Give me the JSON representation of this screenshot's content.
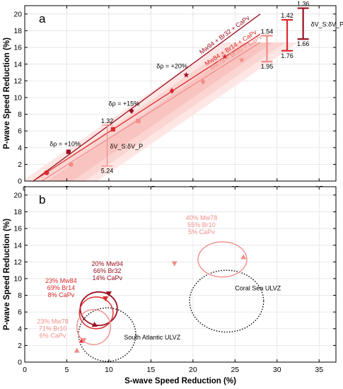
{
  "chart_data": [
    {
      "panel": "a",
      "type": "line",
      "xlabel": "",
      "ylabel": "P-wave Speed Reduction (%)",
      "xlim": [
        0,
        37
      ],
      "ylim": [
        0,
        21
      ],
      "x_ticks": [
        0,
        5,
        10,
        15,
        20,
        25,
        30,
        35
      ],
      "y_ticks": [
        0,
        2,
        4,
        6,
        8,
        10,
        12,
        14,
        16,
        18,
        20
      ],
      "grid": true,
      "series": [
        {
          "name": "Mw94 + Br32 + CaPv",
          "color": "#9b1020",
          "line": [
            [
              1.0,
              0.0
            ],
            [
              28.0,
              20.0
            ]
          ],
          "points": [
            {
              "x": 5.2,
              "y": 3.5,
              "marker": "square"
            },
            {
              "x": 12.7,
              "y": 8.4,
              "marker": "diamond"
            },
            {
              "x": 19.2,
              "y": 12.7,
              "marker": "star"
            }
          ]
        },
        {
          "name": "Mw84 + Br14 + CaPv",
          "color": "#dc2b2b",
          "line": [
            [
              1.0,
              0.0
            ],
            [
              28.0,
              17.6
            ]
          ],
          "points": [
            {
              "x": 2.6,
              "y": 1.0,
              "marker": "circle"
            },
            {
              "x": 10.5,
              "y": 6.2,
              "marker": "square"
            },
            {
              "x": 17.5,
              "y": 10.8,
              "marker": "diamond"
            },
            {
              "x": 23.8,
              "y": 14.9,
              "marker": "star"
            }
          ]
        },
        {
          "name": "Mw78 + Br10 + CaPv",
          "color": "#f08e8a",
          "line": [
            [
              2.0,
              0.0
            ],
            [
              28.0,
              16.6
            ]
          ],
          "points": [
            {
              "x": 5.5,
              "y": 2.0,
              "marker": "circle"
            },
            {
              "x": 13.5,
              "y": 7.2,
              "marker": "square"
            },
            {
              "x": 21.2,
              "y": 11.9,
              "marker": "diamond"
            },
            {
              "x": 25.8,
              "y": 14.5,
              "marker": "star"
            }
          ]
        }
      ],
      "shading": {
        "colors": [
          "#fde6e4",
          "#fbd5d2",
          "#f9c4c0"
        ],
        "half_widths": [
          4.5,
          3.0,
          1.5
        ]
      },
      "density_labels": [
        {
          "text": "δρ = +10%",
          "x": 4.8,
          "y": 4.2
        },
        {
          "text": "δρ = +15%",
          "x": 11.8,
          "y": 9.0
        },
        {
          "text": "δρ = +20%",
          "x": 17.5,
          "y": 13.5
        }
      ],
      "ratio_label": "δV_S:δV_P",
      "ratio_bars": [
        {
          "x": 9.8,
          "top": 1.32,
          "bottom": 5.24,
          "y_top": 6.7,
          "y_bottom": 1.8,
          "color": "#f08e8a"
        },
        {
          "x": 28.8,
          "top": 1.54,
          "bottom": 1.95,
          "y_top": 17.4,
          "y_bottom": 14.3,
          "color": "#f08e8a"
        },
        {
          "x": 31.2,
          "top": 1.42,
          "bottom": 1.76,
          "y_top": 19.3,
          "y_bottom": 15.6,
          "color": "#dc2b2b"
        },
        {
          "x": 33.1,
          "top": 1.36,
          "bottom": 1.66,
          "y_top": 20.7,
          "y_bottom": 17.0,
          "color": "#9b1020"
        }
      ]
    },
    {
      "panel": "b",
      "type": "scatter",
      "xlabel": "S-wave Speed Reduction (%)",
      "ylabel": "P-wave Speed Reduction (%)",
      "xlim": [
        0,
        37
      ],
      "ylim": [
        0,
        21
      ],
      "x_ticks": [
        0,
        5,
        10,
        15,
        20,
        25,
        30,
        35
      ],
      "y_ticks": [
        0,
        2,
        4,
        6,
        8,
        10,
        12,
        14,
        16,
        18,
        20
      ],
      "grid": true,
      "ulvz_regions": [
        {
          "label": "Coral Sea ULVZ",
          "cx": 24.0,
          "cy": 7.3,
          "rx": 4.4,
          "ry": 3.7,
          "label_x": 25.0,
          "label_y": 8.6
        },
        {
          "label": "South Atlantic ULVZ",
          "cx": 9.8,
          "cy": 3.3,
          "rx": 3.4,
          "ry": 3.2,
          "label_x": 11.8,
          "label_y": 2.7
        }
      ],
      "mixtures": [
        {
          "label": [
            "40% Mw78",
            "55% Br10",
            "5% CaPv"
          ],
          "color": "#f08e8a",
          "label_x": 19.0,
          "label_y": 17.0,
          "ellipse": {
            "cx": 23.5,
            "cy": 12.3,
            "rx": 2.9,
            "ry": 2.1
          },
          "markers": [
            {
              "x": 17.8,
              "y": 11.8,
              "marker": "down"
            },
            {
              "x": 26.0,
              "y": 12.6,
              "marker": "up"
            }
          ]
        },
        {
          "label": [
            "20% Mw94",
            "66% Br32",
            "14% CaPv"
          ],
          "color": "#9b1020",
          "label_x": 7.8,
          "label_y": 11.5,
          "ellipse": {
            "cx": 8.8,
            "cy": 6.4,
            "rx": 2.2,
            "ry": 2.0
          },
          "markers": [
            {
              "x": 10.0,
              "y": 8.2,
              "marker": "down"
            },
            {
              "x": 8.3,
              "y": 4.5,
              "marker": "up"
            }
          ]
        },
        {
          "label": [
            "23% Mw84",
            "69% Br14",
            "8% CaPv"
          ],
          "color": "#dc2b2b",
          "label_x": 2.3,
          "label_y": 9.5,
          "ellipse": {
            "cx": 8.5,
            "cy": 5.9,
            "rx": 2.0,
            "ry": 1.9
          },
          "markers": [
            {
              "x": 9.6,
              "y": 7.6,
              "marker": "down"
            },
            {
              "x": 6.8,
              "y": 2.6,
              "marker": "up"
            }
          ]
        },
        {
          "label": [
            "23% Mw78",
            "71% Br10",
            "6% CaPv"
          ],
          "color": "#f08e8a",
          "label_x": 1.3,
          "label_y": 4.6,
          "ellipse": {
            "cx": 8.2,
            "cy": 4.2,
            "rx": 2.0,
            "ry": 2.1
          },
          "markers": [
            {
              "x": 7.0,
              "y": 2.6,
              "marker": "down"
            },
            {
              "x": 6.2,
              "y": 1.4,
              "marker": "up"
            }
          ]
        }
      ]
    }
  ]
}
